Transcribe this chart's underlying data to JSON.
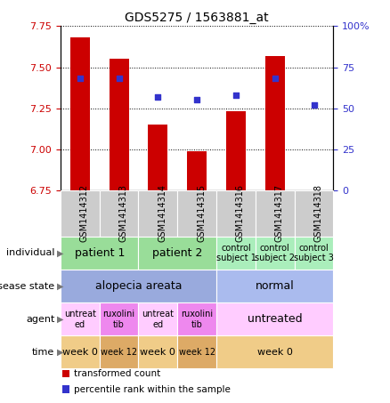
{
  "title": "GDS5275 / 1563881_at",
  "samples": [
    "GSM1414312",
    "GSM1414313",
    "GSM1414314",
    "GSM1414315",
    "GSM1414316",
    "GSM1414317",
    "GSM1414318"
  ],
  "bar_values": [
    7.68,
    7.55,
    7.15,
    6.99,
    7.23,
    7.57,
    6.75
  ],
  "dot_values": [
    68,
    68,
    57,
    55,
    58,
    68,
    52
  ],
  "ylim_left": [
    6.75,
    7.75
  ],
  "ylim_right": [
    0,
    100
  ],
  "yticks_left": [
    6.75,
    7.0,
    7.25,
    7.5,
    7.75
  ],
  "yticks_right": [
    0,
    25,
    50,
    75,
    100
  ],
  "ytick_labels_right": [
    "0",
    "25",
    "50",
    "75",
    "100%"
  ],
  "bar_color": "#cc0000",
  "dot_color": "#3333cc",
  "bar_bottom": 6.75,
  "sample_bg_color": "#cccccc",
  "annotation_rows": [
    {
      "label": "individual",
      "cells": [
        {
          "text": "patient 1",
          "span": 2,
          "color": "#99dd99",
          "fontsize": 9
        },
        {
          "text": "patient 2",
          "span": 2,
          "color": "#99dd99",
          "fontsize": 9
        },
        {
          "text": "control\nsubject 1",
          "span": 1,
          "color": "#aaeebb",
          "fontsize": 7
        },
        {
          "text": "control\nsubject 2",
          "span": 1,
          "color": "#aaeebb",
          "fontsize": 7
        },
        {
          "text": "control\nsubject 3",
          "span": 1,
          "color": "#aaeebb",
          "fontsize": 7
        }
      ]
    },
    {
      "label": "disease state",
      "cells": [
        {
          "text": "alopecia areata",
          "span": 4,
          "color": "#99aadd",
          "fontsize": 9
        },
        {
          "text": "normal",
          "span": 3,
          "color": "#aabbee",
          "fontsize": 9
        }
      ]
    },
    {
      "label": "agent",
      "cells": [
        {
          "text": "untreat\ned",
          "span": 1,
          "color": "#ffccff",
          "fontsize": 7
        },
        {
          "text": "ruxolini\ntib",
          "span": 1,
          "color": "#ee88ee",
          "fontsize": 7
        },
        {
          "text": "untreat\ned",
          "span": 1,
          "color": "#ffccff",
          "fontsize": 7
        },
        {
          "text": "ruxolini\ntib",
          "span": 1,
          "color": "#ee88ee",
          "fontsize": 7
        },
        {
          "text": "untreated",
          "span": 3,
          "color": "#ffccff",
          "fontsize": 9
        }
      ]
    },
    {
      "label": "time",
      "cells": [
        {
          "text": "week 0",
          "span": 1,
          "color": "#f0cc88",
          "fontsize": 8
        },
        {
          "text": "week 12",
          "span": 1,
          "color": "#ddaa66",
          "fontsize": 7
        },
        {
          "text": "week 0",
          "span": 1,
          "color": "#f0cc88",
          "fontsize": 8
        },
        {
          "text": "week 12",
          "span": 1,
          "color": "#ddaa66",
          "fontsize": 7
        },
        {
          "text": "week 0",
          "span": 3,
          "color": "#f0cc88",
          "fontsize": 8
        }
      ]
    }
  ],
  "legend_items": [
    {
      "color": "#cc0000",
      "label": "transformed count"
    },
    {
      "color": "#3333cc",
      "label": "percentile rank within the sample"
    }
  ],
  "left_axis_color": "#cc0000",
  "right_axis_color": "#3333cc"
}
